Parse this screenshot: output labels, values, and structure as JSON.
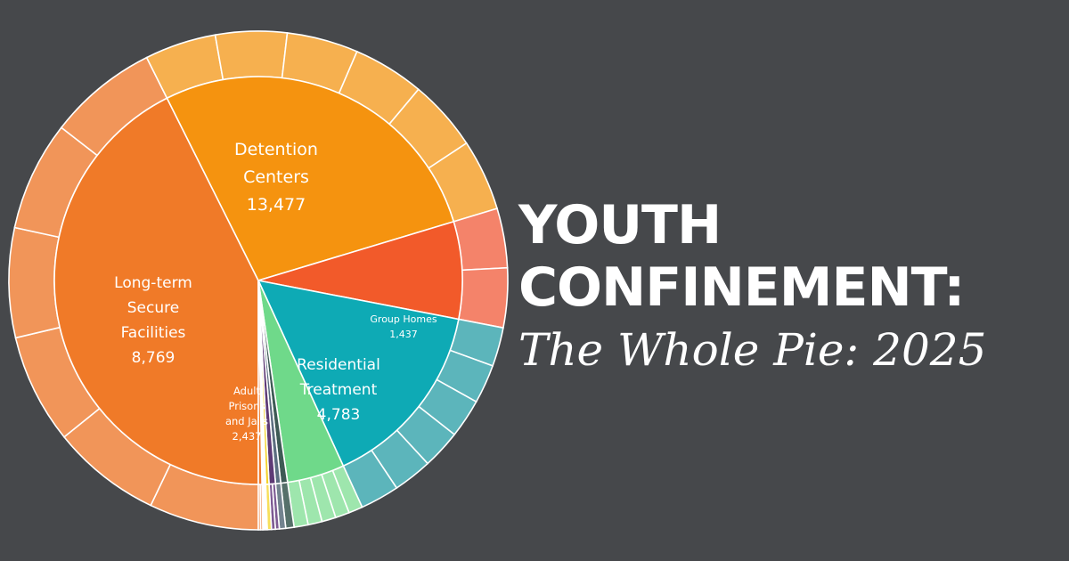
{
  "title": {
    "line1": "YOUTH",
    "line2": "CONFINEMENT:",
    "subtitle": "The Whole Pie: 2025"
  },
  "chart_data": {
    "type": "pie",
    "style": "sunburst",
    "slices": [
      {
        "label_lines": [
          "Detention",
          "Centers",
          "13,477"
        ],
        "value": 13477,
        "color": "#f07a28",
        "outer_color": "#f19559",
        "subdivisions": 6
      },
      {
        "label_lines": [
          "Long-term",
          "Secure",
          "Facilities",
          "8,769"
        ],
        "value": 8769,
        "color": "#f5930f",
        "outer_color": "#f6b04f",
        "subdivisions": 6
      },
      {
        "label_lines": [
          "Adult",
          "Prisons",
          "and Jails",
          "2,437"
        ],
        "value": 2437,
        "color": "#f25a2a",
        "outer_color": "#f4836a",
        "subdivisions": 2
      },
      {
        "label_lines": [
          "Residential",
          "Treatment",
          "4,783"
        ],
        "value": 4783,
        "color": "#0eaab5",
        "outer_color": "#5cb5bb",
        "subdivisions": 6
      },
      {
        "label_lines": [
          "Group Homes",
          "1,437"
        ],
        "value": 1437,
        "color": "#6fd98a",
        "outer_color": "#9ee6ad",
        "subdivisions": 5
      },
      {
        "label_lines": [],
        "value": 170,
        "color": "#3e5a55",
        "outer_color": "#56706a",
        "subdivisions": 1
      },
      {
        "label_lines": [],
        "value": 130,
        "color": "#5c6e80",
        "outer_color": "#73838f",
        "subdivisions": 1
      },
      {
        "label_lines": [],
        "value": 160,
        "color": "#5e3a75",
        "outer_color": "#7d5a93",
        "subdivisions": 2
      },
      {
        "label_lines": [],
        "value": 85,
        "color": "#f4d32a",
        "outer_color": "#f7df5a",
        "subdivisions": 1
      },
      {
        "label_lines": [],
        "value": 90,
        "color": "#ffffff",
        "outer_color": "#ffffff",
        "subdivisions": 1
      },
      {
        "label_lines": [],
        "value": 90,
        "color": "#f07a28",
        "outer_color": "#f19559",
        "subdivisions": 2
      }
    ]
  }
}
